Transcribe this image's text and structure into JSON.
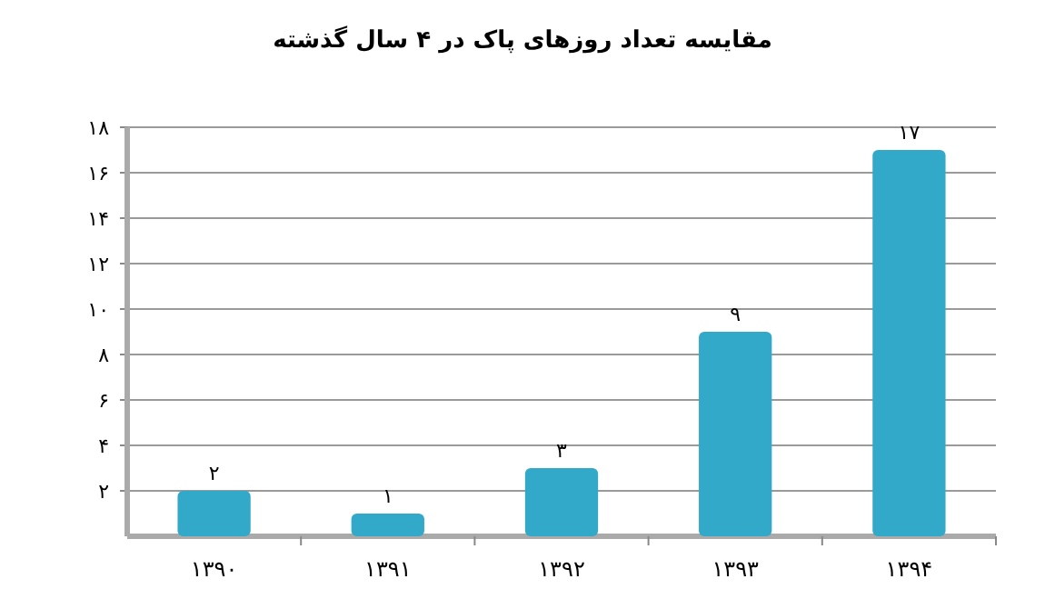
{
  "chart_data": {
    "type": "bar",
    "title": "مقایسه تعداد روزهای پاک در ۴ سال گذشته",
    "categories": [
      "۱۳۹۰",
      "۱۳۹۱",
      "۱۳۹۲",
      "۱۳۹۳",
      "۱۳۹۴"
    ],
    "values": [
      2,
      1,
      3,
      9,
      17
    ],
    "value_labels": [
      "۲",
      "۱",
      "۳",
      "۹",
      "۱۷"
    ],
    "color": "#33a9c9",
    "ylim": [
      0,
      18
    ],
    "yticks": [
      {
        "value": 2,
        "label": "۲"
      },
      {
        "value": 4,
        "label": "۴"
      },
      {
        "value": 6,
        "label": "۶"
      },
      {
        "value": 8,
        "label": "۸"
      },
      {
        "value": 10,
        "label": "۱۰"
      },
      {
        "value": 12,
        "label": "۱۲"
      },
      {
        "value": 14,
        "label": "۱۴"
      },
      {
        "value": 16,
        "label": "۱۶"
      },
      {
        "value": 18,
        "label": "۱۸"
      }
    ],
    "grid": "y"
  }
}
